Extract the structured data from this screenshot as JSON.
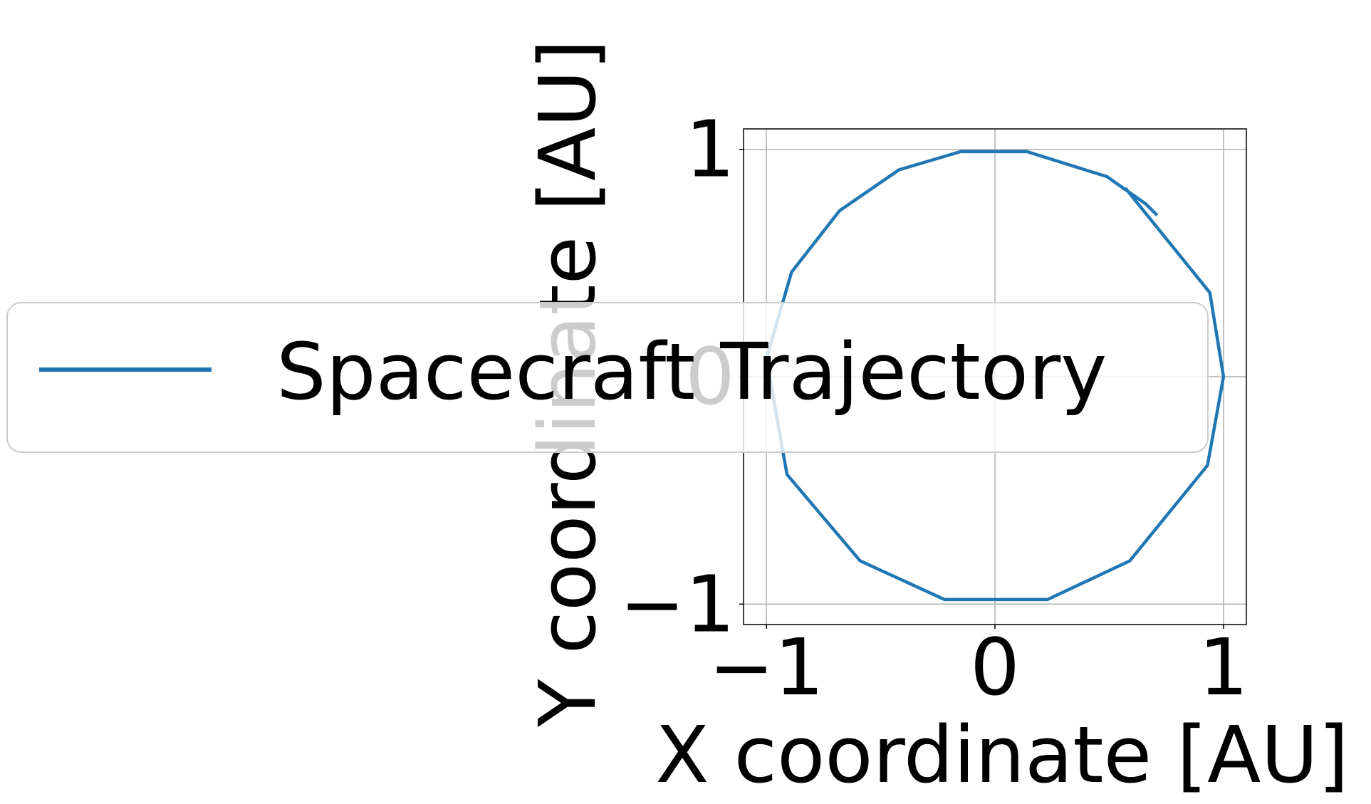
{
  "chart_data": {
    "type": "line",
    "title": "",
    "xlabel": "X coordinate [AU]",
    "ylabel": "Y coordinate [AU]",
    "xlim": [
      -1.1,
      1.1
    ],
    "ylim": [
      -1.09,
      1.09
    ],
    "xticks": [
      -1,
      0,
      1
    ],
    "xtick_labels": [
      "−1",
      "0",
      "1"
    ],
    "yticks": [
      -1,
      0,
      1
    ],
    "ytick_labels": [
      "−1",
      "0",
      "1"
    ],
    "grid": true,
    "legend_placement": "center-left",
    "colors": {
      "series": "#1f77b4",
      "grid": "#b0b0b0"
    },
    "series": [
      {
        "name": "Spacecraft Trajectory",
        "x": [
          0.71,
          0.66,
          0.49,
          0.14,
          -0.15,
          -0.42,
          -0.68,
          -0.89,
          -1.0,
          -0.91,
          -0.59,
          -0.22,
          0.23,
          0.59,
          0.93,
          1.0,
          0.94,
          0.57
        ],
        "y": [
          0.71,
          0.76,
          0.88,
          0.99,
          0.99,
          0.91,
          0.73,
          0.46,
          0.08,
          -0.43,
          -0.81,
          -0.98,
          -0.98,
          -0.81,
          -0.39,
          0.0,
          0.37,
          0.83
        ]
      }
    ]
  }
}
